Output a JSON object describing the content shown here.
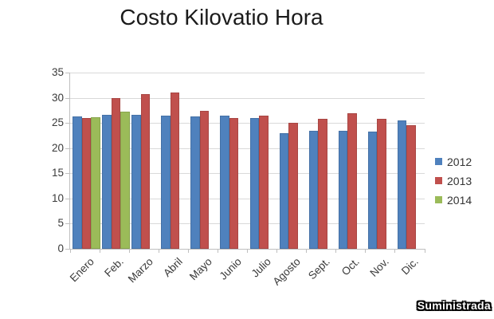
{
  "title": "Costo Kilovatio Hora",
  "watermark": "Suministrada",
  "chart_data": {
    "type": "bar",
    "title": "Costo Kilovatio Hora",
    "categories": [
      "Enero",
      "Feb.",
      "Marzo",
      "Abril",
      "Mayo",
      "Junio",
      "Julio",
      "Agosto",
      "Sept.",
      "Oct.",
      "Nov.",
      "Dic."
    ],
    "series": [
      {
        "name": "2012",
        "color": "#4F81BD",
        "values": [
          26.3,
          26.6,
          26.6,
          26.4,
          26.3,
          26.5,
          25.9,
          23.0,
          23.4,
          23.4,
          23.3,
          25.5
        ]
      },
      {
        "name": "2013",
        "color": "#C0504D",
        "values": [
          25.9,
          30.0,
          30.7,
          31.0,
          27.4,
          25.9,
          26.4,
          25.1,
          25.8,
          27.0,
          25.8,
          24.5
        ]
      },
      {
        "name": "2014",
        "color": "#9BBB59",
        "values": [
          26.2,
          27.2,
          null,
          null,
          null,
          null,
          null,
          null,
          null,
          null,
          null,
          null
        ]
      }
    ],
    "xlabel": "",
    "ylabel": "",
    "ylim": [
      0,
      35
    ],
    "yticks": [
      0,
      5,
      10,
      15,
      20,
      25,
      30,
      35
    ],
    "grid": true,
    "legend_position": "right",
    "colors": {
      "gridline": "#D9D9D9",
      "axis": "#BFBFBF",
      "tick_text": "#3A3A3A",
      "title_text": "#1B1B1B"
    }
  }
}
